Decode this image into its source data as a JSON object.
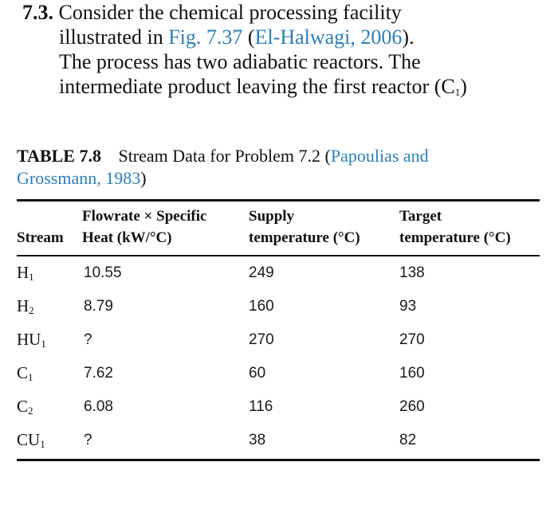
{
  "problem": {
    "number": "7.3.",
    "line1_text": "Consider the chemical processing facility",
    "line2_pre": "illustrated in ",
    "line2_fig": "Fig. 7.37",
    "line2_paren_open": " (",
    "line2_ref": "El-Halwagi, 2006",
    "line2_paren_close": ").",
    "line3": "The process has two adiabatic reactors. The",
    "line4_pre": "intermediate product leaving the first reactor (C",
    "line4_sub": "1",
    "line4_post": ")"
  },
  "table": {
    "caption_label": "TABLE 7.8",
    "caption_text": "Stream Data for Problem 7.2 (",
    "caption_ref_a": "Papoulias and",
    "caption_ref_b": "Grossmann, 1983",
    "caption_close": ")",
    "headers": {
      "stream": "Stream",
      "flow_line1": "Flowrate × Specific",
      "flow_line2": "Heat (kW/°C)",
      "supply_line1": "Supply",
      "supply_line2": "temperature (°C)",
      "target_line1": "Target",
      "target_line2": "temperature (°C)"
    },
    "rows": [
      {
        "stream": "H",
        "sub": "1",
        "flow": "10.55",
        "supply": "249",
        "target": "138"
      },
      {
        "stream": "H",
        "sub": "2",
        "flow": "8.79",
        "supply": "160",
        "target": "93"
      },
      {
        "stream": "HU",
        "sub": "1",
        "flow": "?",
        "supply": "270",
        "target": "270"
      },
      {
        "stream": "C",
        "sub": "1",
        "flow": "7.62",
        "supply": "60",
        "target": "160"
      },
      {
        "stream": "C",
        "sub": "2",
        "flow": "6.08",
        "supply": "116",
        "target": "260"
      },
      {
        "stream": "CU",
        "sub": "1",
        "flow": "?",
        "supply": "38",
        "target": "82"
      }
    ]
  },
  "colors": {
    "link": "#2a7fb8",
    "text": "#111111"
  }
}
